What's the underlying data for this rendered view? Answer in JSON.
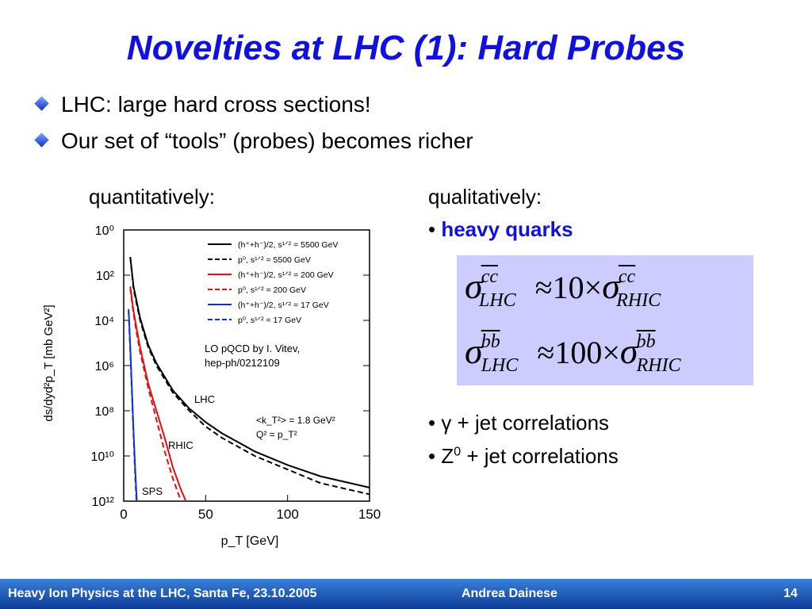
{
  "slide": {
    "title": "Novelties at LHC (1): Hard Probes",
    "bullets": [
      "LHC: large hard cross sections!",
      "Our set of “tools” (probes) becomes richer"
    ],
    "quant_label": "quantitatively:",
    "qual_label": "qualitatively:",
    "heavy_prefix": "•",
    "heavy_quarks": "heavy quarks",
    "eq1": {
      "sigma": "σ",
      "sup": "cc",
      "sub": "LHC",
      "rel": "≈10×",
      "sub2": "RHIC"
    },
    "eq2": {
      "sigma": "σ",
      "sup": "bb",
      "sub": "LHC",
      "rel": "≈100×",
      "sub2": "RHIC"
    },
    "corr1": "• γ + jet correlations",
    "corr2_a": "• Z",
    "corr2_sup": "0",
    "corr2_b": " + jet correlations",
    "footer_left": "Heavy Ion Physics at the LHC, Santa Fe, 23.10.2005",
    "footer_mid": "Andrea Dainese",
    "page_number": "14",
    "colors": {
      "title": "#1010e0",
      "footer": "#1a56c0",
      "eqbox": "#ccccff"
    }
  },
  "chart_data": {
    "type": "line",
    "xlabel": "p_T [GeV]",
    "ylabel": "ds/dyd²p_T [mb GeV²]",
    "xlim": [
      0,
      150
    ],
    "ylim_log10": [
      0,
      -12
    ],
    "xticks": [
      "0",
      "50",
      "100",
      "150"
    ],
    "yticks": [
      "10⁰",
      "10²",
      "10⁴",
      "10⁶",
      "10⁸",
      "10¹⁰",
      "10¹²"
    ],
    "annotation": "LO pQCD by I. Vitev, hep-ph/0212109",
    "region_labels": [
      "LHC",
      "RHIC",
      "SPS"
    ],
    "param_labels": [
      "<k_T²> = 1.8 GeV²",
      "Q² = p_T²"
    ],
    "legend": [
      {
        "name": "(h⁺+h⁻)/2, s¹ᐟ² = 5500 GeV",
        "color": "#000000",
        "dash": false
      },
      {
        "name": "p⁰, s¹ᐟ² = 5500 GeV",
        "color": "#000000",
        "dash": true
      },
      {
        "name": "(h⁺+h⁻)/2, s¹ᐟ² = 200 GeV",
        "color": "#e01010",
        "dash": false
      },
      {
        "name": "p⁰, s¹ᐟ² = 200 GeV",
        "color": "#e01010",
        "dash": true
      },
      {
        "name": "(h⁺+h⁻)/2, s¹ᐟ² = 17 GeV",
        "color": "#1030e0",
        "dash": false
      },
      {
        "name": "p⁰, s¹ᐟ² = 17 GeV",
        "color": "#1030e0",
        "dash": true
      }
    ],
    "series": [
      {
        "name": "(h⁺+h⁻)/2, s¹ᐟ² = 5500 GeV",
        "color": "#000000",
        "dash": false,
        "x": [
          4,
          6,
          10,
          15,
          20,
          30,
          40,
          50,
          60,
          70,
          80,
          100,
          120,
          150
        ],
        "log10y": [
          -1.2,
          -2.5,
          -3.9,
          -5.1,
          -5.9,
          -7.1,
          -7.9,
          -8.5,
          -9.0,
          -9.4,
          -9.8,
          -10.4,
          -10.9,
          -11.4
        ]
      },
      {
        "name": "p⁰, s¹ᐟ² = 5500 GeV",
        "color": "#000000",
        "dash": true,
        "x": [
          4,
          6,
          10,
          15,
          20,
          30,
          40,
          50,
          60,
          70,
          80,
          100,
          120,
          150
        ],
        "log10y": [
          -1.2,
          -2.6,
          -4.0,
          -5.2,
          -6.0,
          -7.2,
          -8.0,
          -8.7,
          -9.2,
          -9.6,
          -10.0,
          -10.6,
          -11.2,
          -11.7
        ]
      },
      {
        "name": "(h⁺+h⁻)/2, s¹ᐟ² = 200 GeV",
        "color": "#e01010",
        "dash": false,
        "x": [
          4,
          6,
          8,
          10,
          15,
          20,
          25,
          30,
          35,
          38
        ],
        "log10y": [
          -2.5,
          -3.6,
          -4.4,
          -5.2,
          -6.8,
          -8.0,
          -9.2,
          -10.5,
          -11.5,
          -12
        ]
      },
      {
        "name": "p⁰, s¹ᐟ² = 200 GeV",
        "color": "#e01010",
        "dash": true,
        "x": [
          4,
          6,
          8,
          10,
          15,
          20,
          25,
          30,
          35
        ],
        "log10y": [
          -2.6,
          -3.7,
          -4.6,
          -5.4,
          -7.0,
          -8.4,
          -9.8,
          -11.0,
          -12
        ]
      },
      {
        "name": "(h⁺+h⁻)/2, s¹ᐟ² = 17 GeV",
        "color": "#1030e0",
        "dash": false,
        "x": [
          3,
          4,
          5,
          6,
          7,
          8
        ],
        "log10y": [
          -3.5,
          -5.2,
          -7.0,
          -8.9,
          -10.6,
          -12
        ]
      },
      {
        "name": "p⁰, s¹ᐟ² = 17 GeV",
        "color": "#1030e0",
        "dash": true,
        "x": [
          3,
          4,
          5,
          6,
          7,
          7.8
        ],
        "log10y": [
          -3.6,
          -5.4,
          -7.2,
          -9.1,
          -10.9,
          -12
        ]
      }
    ]
  }
}
